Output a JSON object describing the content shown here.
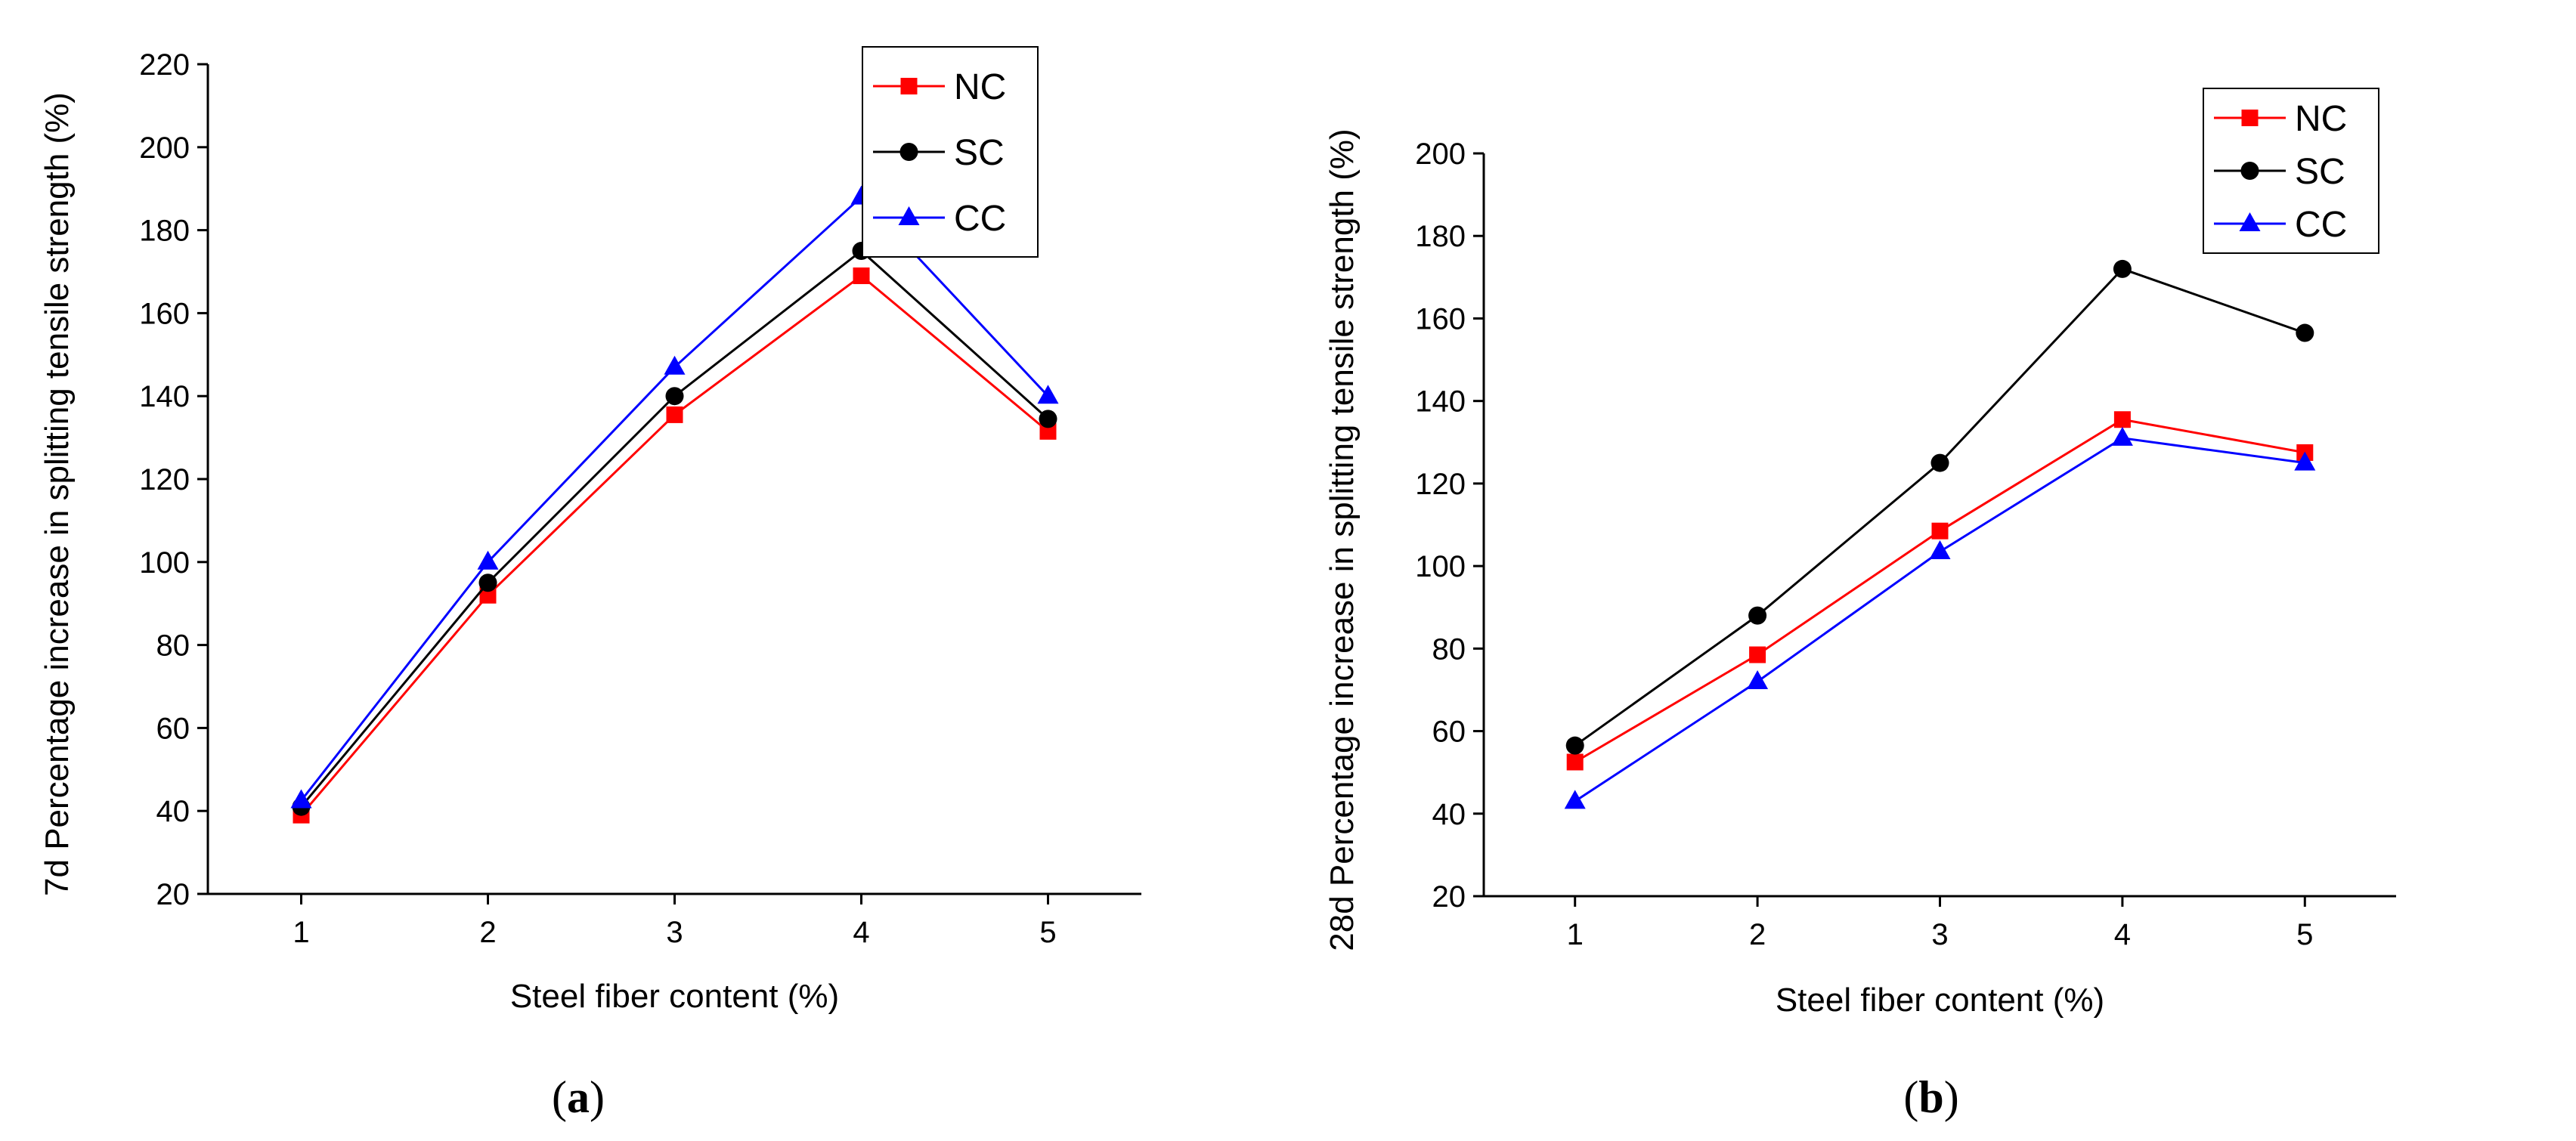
{
  "chart_data": [
    {
      "type": "line",
      "panel": "a",
      "caption_open": "(",
      "caption_letter": "a",
      "caption_close": ")",
      "xlabel": "Steel fiber content (%)",
      "ylabel": "7d Percentage increase in splitting tensile strength (%)",
      "x": [
        1,
        2,
        3,
        4,
        5
      ],
      "xticks": [
        1,
        2,
        3,
        4,
        5
      ],
      "xlim": [
        0.5,
        5.5
      ],
      "ylim": [
        20,
        220
      ],
      "yticks": [
        20,
        40,
        60,
        80,
        100,
        120,
        140,
        160,
        180,
        200,
        220
      ],
      "legend_position": "top-right",
      "series": [
        {
          "name": "NC",
          "color": "#ff0000",
          "marker": "square",
          "values": [
            39,
            92,
            135.5,
            169,
            131.5
          ]
        },
        {
          "name": "SC",
          "color": "#000000",
          "marker": "circle",
          "values": [
            41,
            95,
            140,
            175,
            134.5
          ]
        },
        {
          "name": "CC",
          "color": "#0000ff",
          "marker": "triangle",
          "values": [
            42.5,
            100,
            147,
            188,
            140
          ]
        }
      ]
    },
    {
      "type": "line",
      "panel": "b",
      "caption_open": "(",
      "caption_letter": "b",
      "caption_close": ")",
      "xlabel": "Steel fiber content (%)",
      "ylabel": "28d Percentage increase in splitting tensile strength (%)",
      "x": [
        1,
        2,
        3,
        4,
        5
      ],
      "xticks": [
        1,
        2,
        3,
        4,
        5
      ],
      "xlim": [
        0.5,
        5.5
      ],
      "ylim": [
        20,
        200
      ],
      "yticks": [
        20,
        40,
        60,
        80,
        100,
        120,
        140,
        160,
        180,
        200
      ],
      "legend_position": "top-right",
      "series": [
        {
          "name": "NC",
          "color": "#ff0000",
          "marker": "square",
          "values": [
            52.5,
            78.5,
            108.5,
            135.5,
            127.5
          ]
        },
        {
          "name": "SC",
          "color": "#000000",
          "marker": "circle",
          "values": [
            56.5,
            88,
            125,
            172,
            156.5
          ]
        },
        {
          "name": "CC",
          "color": "#0000ff",
          "marker": "triangle",
          "values": [
            43,
            72,
            103.5,
            131,
            125
          ]
        }
      ]
    }
  ]
}
